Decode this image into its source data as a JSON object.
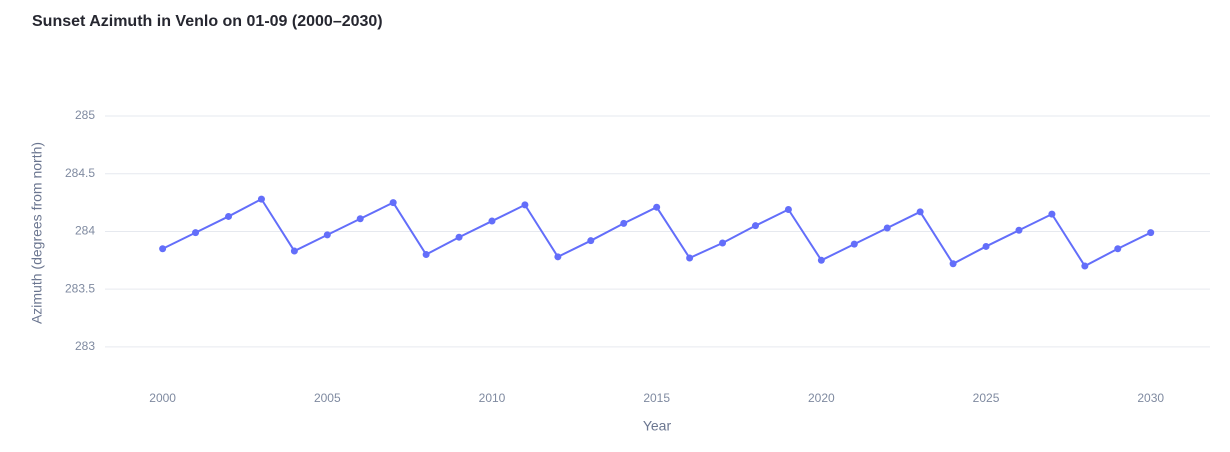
{
  "chart_data": {
    "type": "line",
    "title": "Sunset Azimuth in Venlo on 01-09 (2000–2030)",
    "x_label": "Year",
    "y_label": "Azimuth (degrees from north)",
    "x": [
      2000,
      2001,
      2002,
      2003,
      2004,
      2005,
      2006,
      2007,
      2008,
      2009,
      2010,
      2011,
      2012,
      2013,
      2014,
      2015,
      2016,
      2017,
      2018,
      2019,
      2020,
      2021,
      2022,
      2023,
      2024,
      2025,
      2026,
      2027,
      2028,
      2029,
      2030
    ],
    "series": [
      {
        "name": "Azimuth",
        "color": "#636efa",
        "values": [
          283.85,
          283.99,
          284.13,
          284.28,
          283.83,
          283.97,
          284.11,
          284.25,
          283.8,
          283.95,
          284.09,
          284.23,
          283.78,
          283.92,
          284.07,
          284.21,
          283.77,
          283.9,
          284.05,
          284.19,
          283.75,
          283.89,
          284.03,
          284.17,
          283.72,
          283.87,
          284.01,
          284.15,
          283.7,
          283.85,
          283.99
        ]
      }
    ],
    "xlim": [
      1998.25,
      2031.8
    ],
    "ylim": [
      282.73,
      285.1
    ],
    "xticks": [
      2000,
      2005,
      2010,
      2015,
      2020,
      2025,
      2030
    ],
    "yticks": [
      283,
      283.5,
      284,
      284.5,
      285
    ],
    "grid": true
  }
}
